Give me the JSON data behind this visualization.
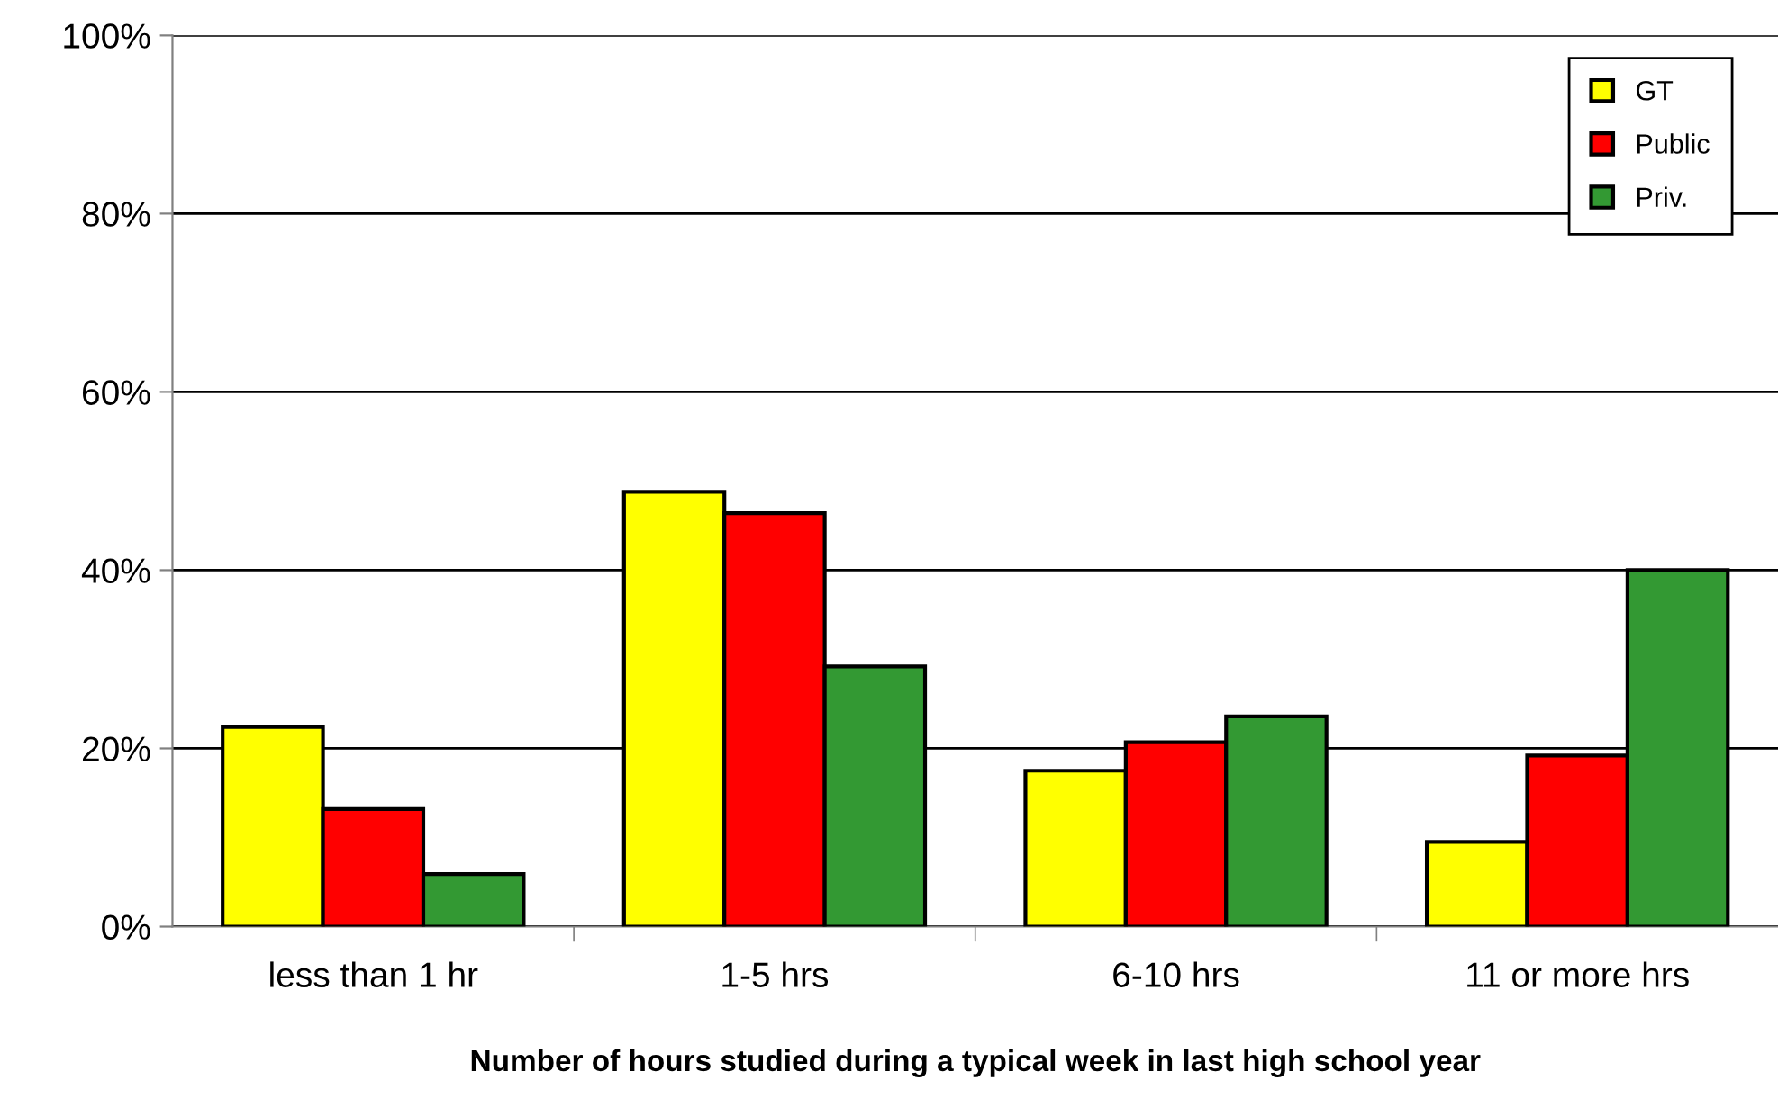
{
  "chart_data": {
    "type": "bar",
    "xlabel": "Number of hours studied during a typical week in last high school year",
    "categories": [
      "less than 1 hr",
      "1-5 hrs",
      "6-10 hrs",
      "11 or more hrs"
    ],
    "series": [
      {
        "name": "GT",
        "color": "#ffff00",
        "values": [
          22.4,
          48.8,
          17.5,
          9.5
        ]
      },
      {
        "name": "Public",
        "color": "#ff0000",
        "values": [
          13.2,
          46.4,
          20.7,
          19.2
        ]
      },
      {
        "name": "Priv.",
        "color": "#339933",
        "values": [
          5.9,
          29.2,
          23.6,
          40.0
        ]
      }
    ],
    "ylim": [
      0,
      100
    ],
    "yticks": [
      {
        "value": 0,
        "label": "0%"
      },
      {
        "value": 20,
        "label": "20%"
      },
      {
        "value": 40,
        "label": "40%"
      },
      {
        "value": 60,
        "label": "60%"
      },
      {
        "value": 80,
        "label": "80%"
      },
      {
        "value": 100,
        "label": "100%"
      }
    ],
    "grid": "y",
    "legend": "top right"
  }
}
